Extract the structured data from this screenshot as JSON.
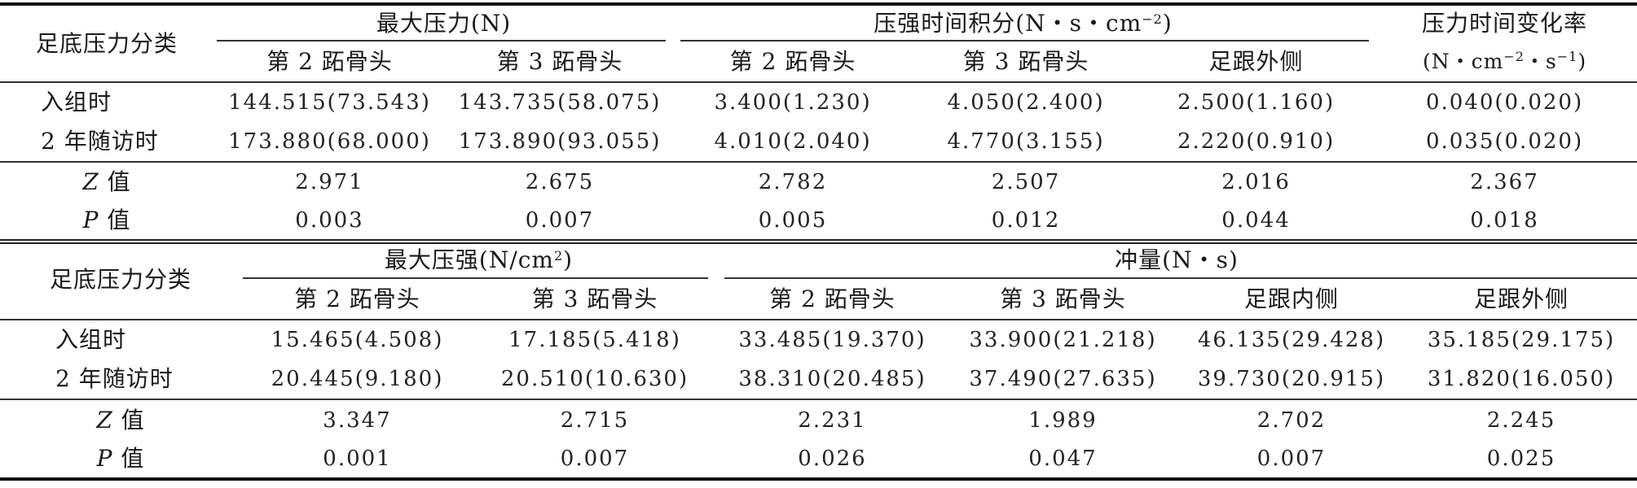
{
  "top_table": {
    "category_header": "足底压力分类",
    "groups": {
      "max_force": "最大压力(N)",
      "pti_prefix": "压强时间积分(N・s・cm",
      "pti_exp": "−2",
      "pti_suffix": ")",
      "rate_line1": "压力时间变化率",
      "rate_prefix": "(N・cm",
      "rate_exp1": "−2",
      "rate_mid": "・s",
      "rate_exp2": "−1",
      "rate_suffix": ")"
    },
    "subheaders": [
      "第 2 跖骨头",
      "第 3 跖骨头",
      "第 2 跖骨头",
      "第 3 跖骨头",
      "足跟外侧"
    ],
    "rows": [
      {
        "label": "入组时",
        "values": [
          "144.515(73.543)",
          "143.735(58.075)",
          "3.400(1.230)",
          "4.050(2.400)",
          "2.500(1.160)",
          "0.040(0.020)"
        ]
      },
      {
        "label": "2 年随访时",
        "values": [
          "173.880(68.000)",
          "173.890(93.055)",
          "4.010(2.040)",
          "4.770(3.155)",
          "2.220(0.910)",
          "0.035(0.020)"
        ]
      },
      {
        "label_italic": "Z",
        "label_suffix": " 值",
        "values": [
          "2.971",
          "2.675",
          "2.782",
          "2.507",
          "2.016",
          "2.367"
        ]
      },
      {
        "label_italic": "P",
        "label_suffix": " 值",
        "values": [
          "0.003",
          "0.007",
          "0.005",
          "0.012",
          "0.044",
          "0.018"
        ]
      }
    ]
  },
  "bottom_table": {
    "category_header": "足底压力分类",
    "groups": {
      "max_pressure_prefix": "最大压强(N/cm",
      "max_pressure_exp": "2",
      "max_pressure_suffix": ")",
      "impulse": "冲量(N・s)"
    },
    "subheaders": [
      "第 2 跖骨头",
      "第 3 跖骨头",
      "第 2 跖骨头",
      "第 3 跖骨头",
      "足跟内侧",
      "足跟外侧"
    ],
    "rows": [
      {
        "label": "入组时",
        "values": [
          "15.465(4.508)",
          "17.185(5.418)",
          "33.485(19.370)",
          "33.900(21.218)",
          "46.135(29.428)",
          "35.185(29.175)"
        ]
      },
      {
        "label": "2 年随访时",
        "values": [
          "20.445(9.180)",
          "20.510(10.630)",
          "38.310(20.485)",
          "37.490(27.635)",
          "39.730(20.915)",
          "31.820(16.050)"
        ]
      },
      {
        "label_italic": "Z",
        "label_suffix": " 值",
        "values": [
          "3.347",
          "2.715",
          "2.231",
          "1.989",
          "2.702",
          "2.245"
        ]
      },
      {
        "label_italic": "P",
        "label_suffix": " 值",
        "values": [
          "0.001",
          "0.007",
          "0.026",
          "0.047",
          "0.007",
          "0.025"
        ]
      }
    ]
  }
}
